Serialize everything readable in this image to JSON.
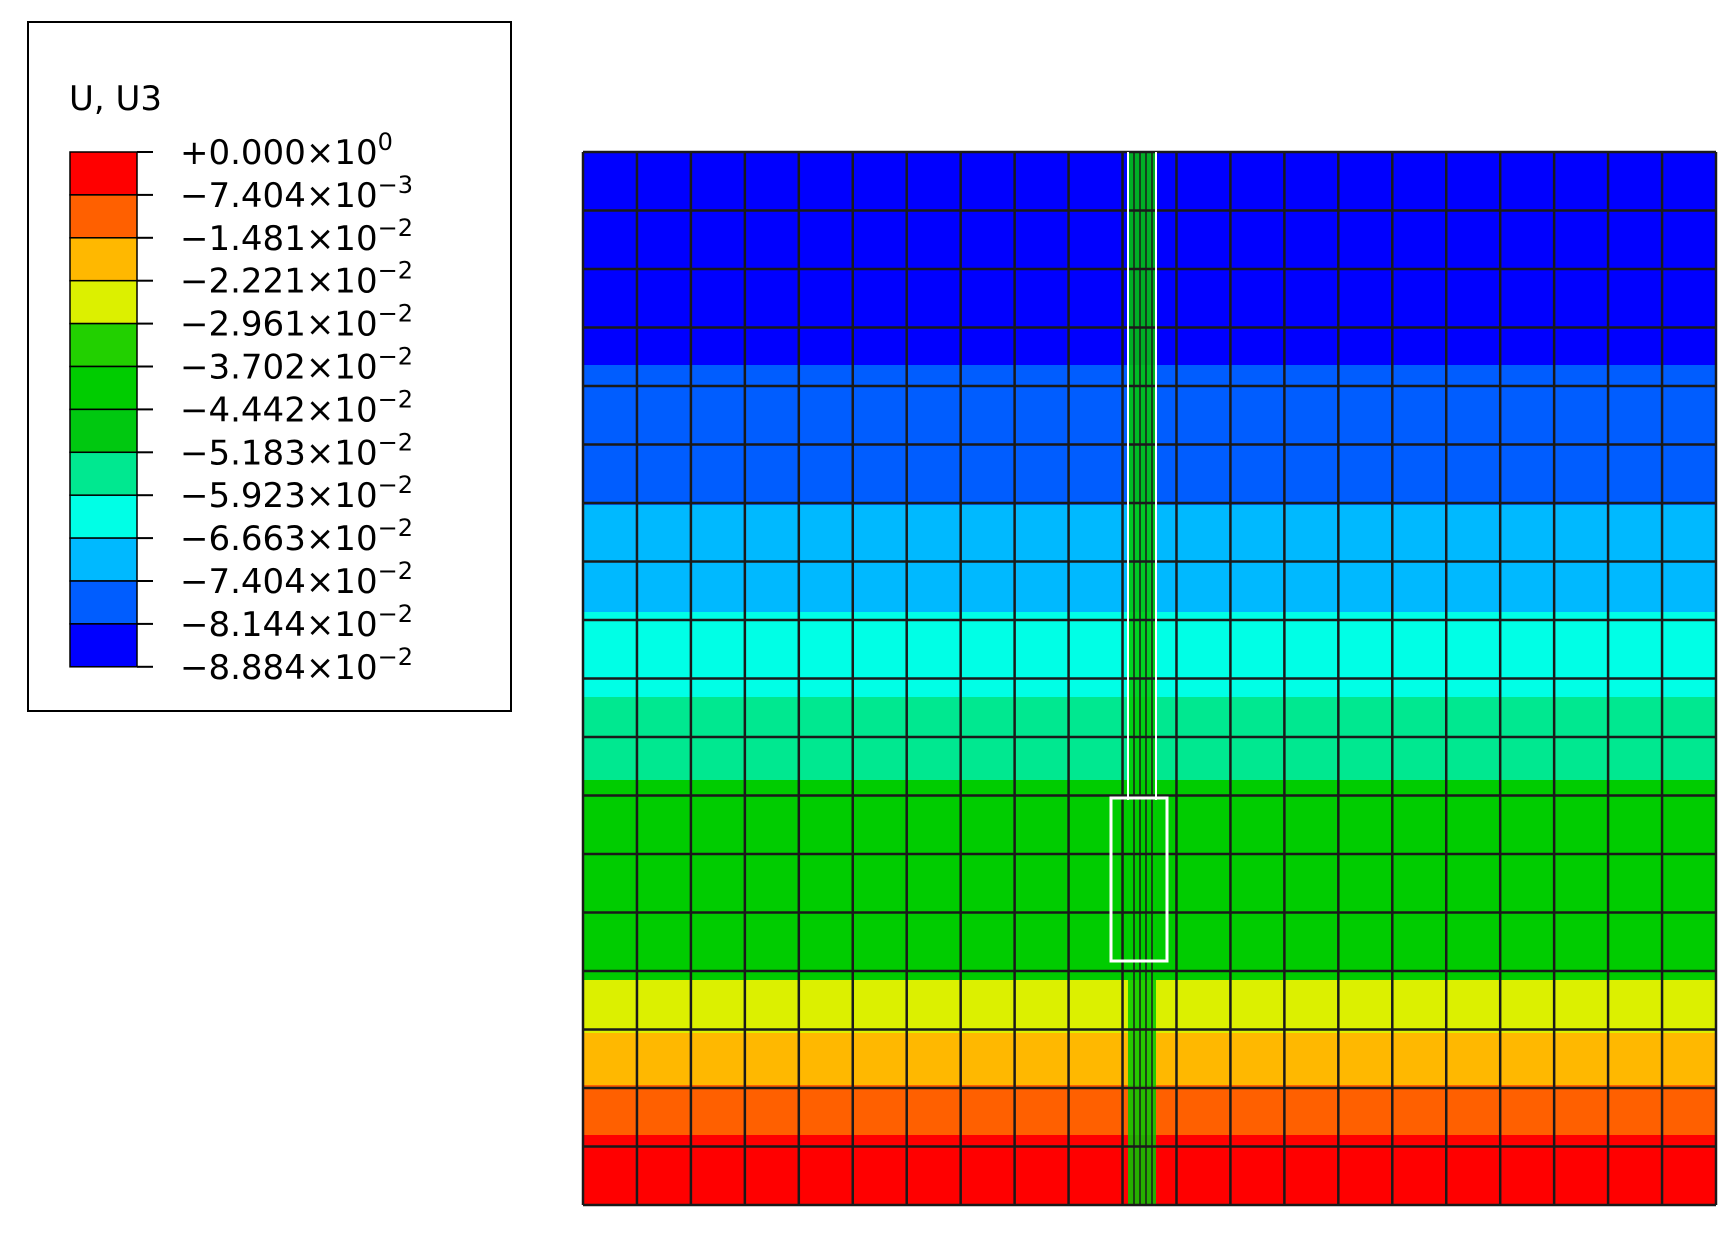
{
  "legend": {
    "title": "U, U3",
    "labels": [
      {
        "mantissa": "+0.000×10",
        "exponent": "0"
      },
      {
        "mantissa": "−7.404×10",
        "exponent": "−3"
      },
      {
        "mantissa": "−1.481×10",
        "exponent": "−2"
      },
      {
        "mantissa": "−2.221×10",
        "exponent": "−2"
      },
      {
        "mantissa": "−2.961×10",
        "exponent": "−2"
      },
      {
        "mantissa": "−3.702×10",
        "exponent": "−2"
      },
      {
        "mantissa": "−4.442×10",
        "exponent": "−2"
      },
      {
        "mantissa": "−5.183×10",
        "exponent": "−2"
      },
      {
        "mantissa": "−5.923×10",
        "exponent": "−2"
      },
      {
        "mantissa": "−6.663×10",
        "exponent": "−2"
      },
      {
        "mantissa": "−7.404×10",
        "exponent": "−2"
      },
      {
        "mantissa": "−8.144×10",
        "exponent": "−2"
      },
      {
        "mantissa": "−8.884×10",
        "exponent": "−2"
      }
    ],
    "colors": [
      "#ff0000",
      "#ff6000",
      "#ffb800",
      "#dcf000",
      "#22d000",
      "#00cc00",
      "#00c810",
      "#00e890",
      "#00ffe6",
      "#00b9ff",
      "#005dff",
      "#0000ff"
    ]
  }
}
